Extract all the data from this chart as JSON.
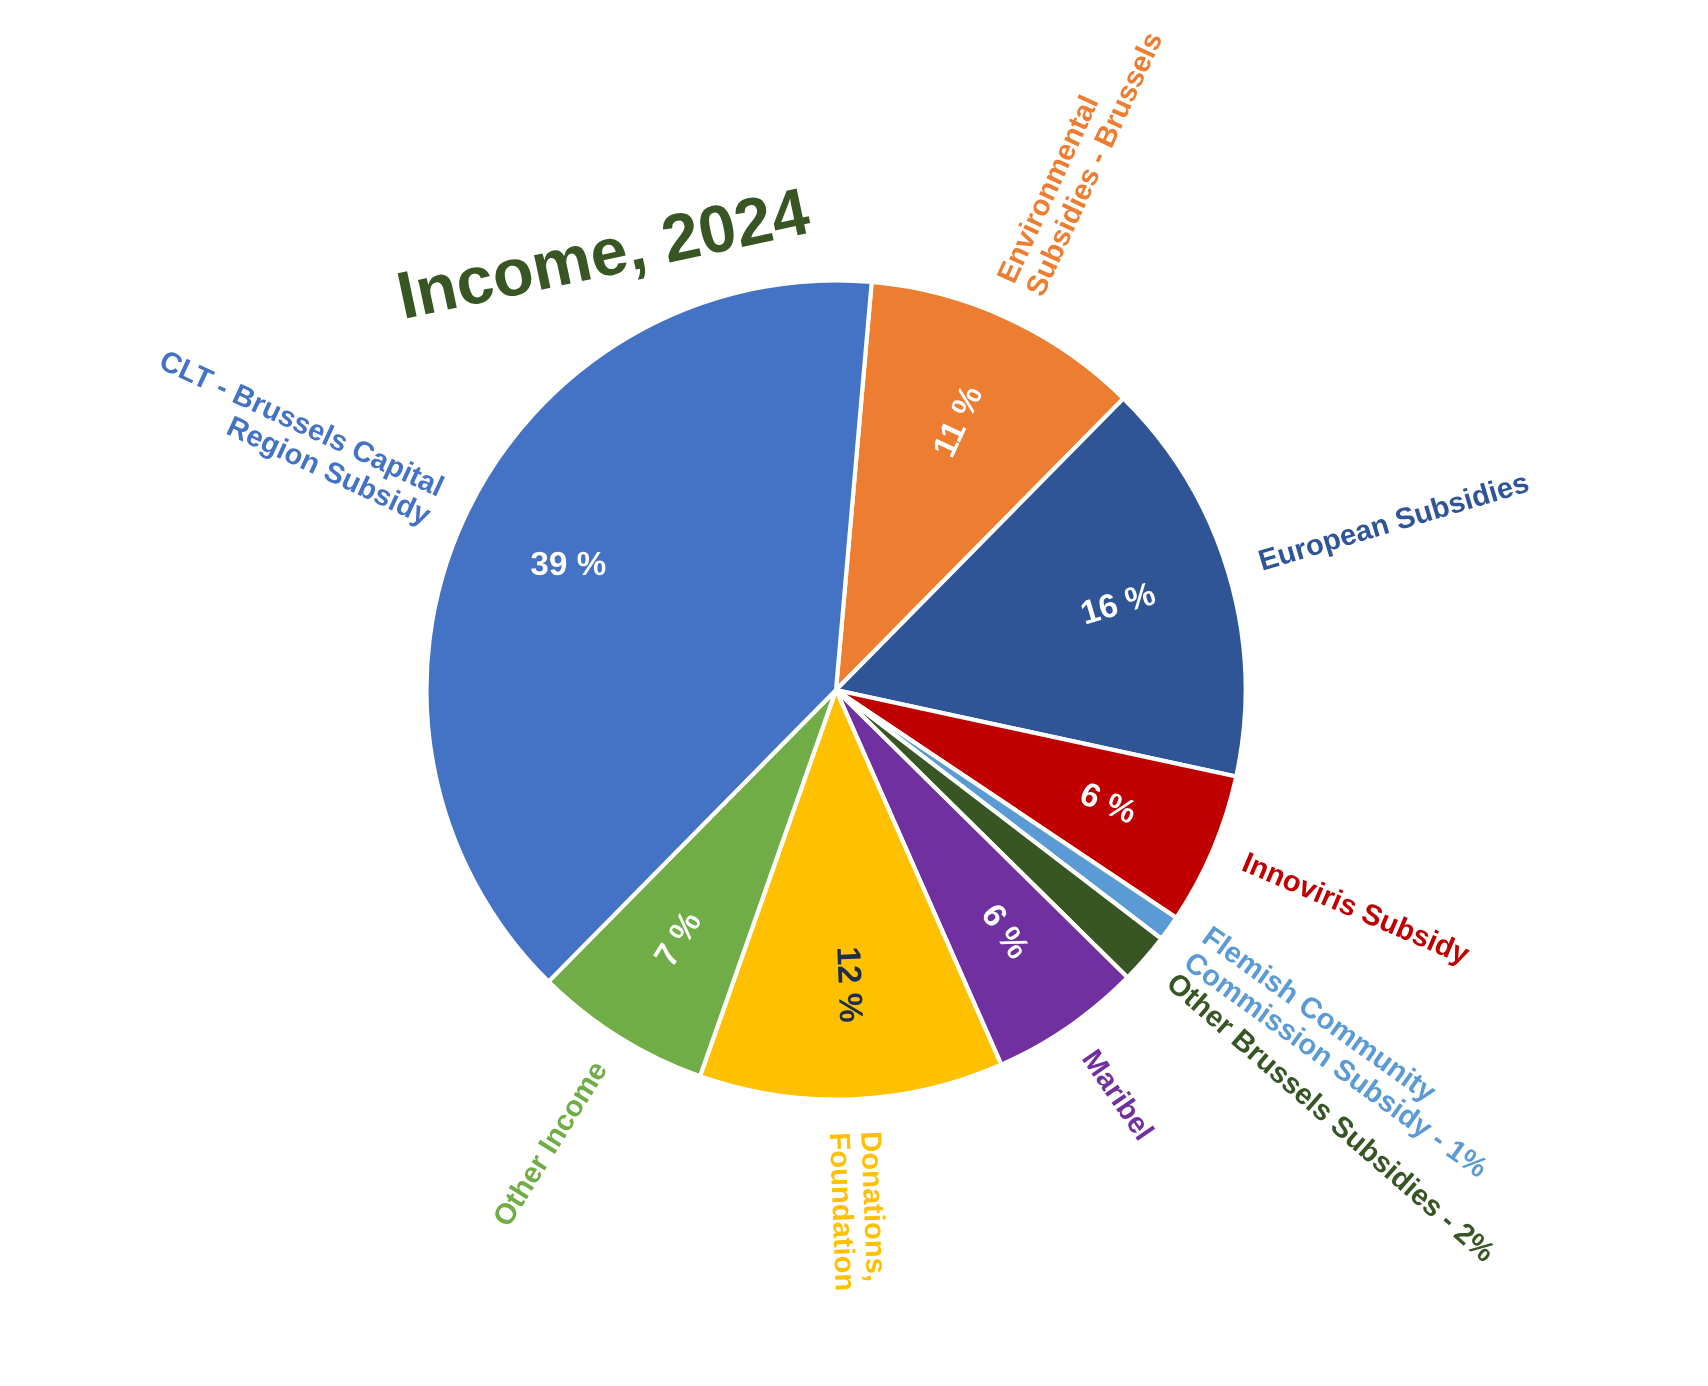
{
  "chart_data": {
    "type": "pie",
    "title": "Income, 2024",
    "categories": [
      "Environmental\nSubsidies - Brussels",
      "European Subsidies",
      "Innoviris Subsidy",
      "Flemish Community\nCommission Subsidy - 1%",
      "Other Brussels Subsidies - 2%",
      "Maribel",
      "Donations,\nFoundation",
      "Other Income",
      "CLT - Brussels Capital\nRegion Subsidy"
    ],
    "values": [
      11,
      16,
      6,
      1,
      2,
      6,
      12,
      7,
      39
    ],
    "colors": [
      "#ed7d31",
      "#2f5597",
      "#c00000",
      "#5b9bd5",
      "#375623",
      "#7030a0",
      "#ffc000",
      "#70ad47",
      "#4472c4"
    ],
    "value_labels": [
      "11 %",
      "16 %",
      "6 %",
      null,
      null,
      "6 %",
      "12 %",
      "7 %",
      "39 %"
    ],
    "legend": false
  }
}
